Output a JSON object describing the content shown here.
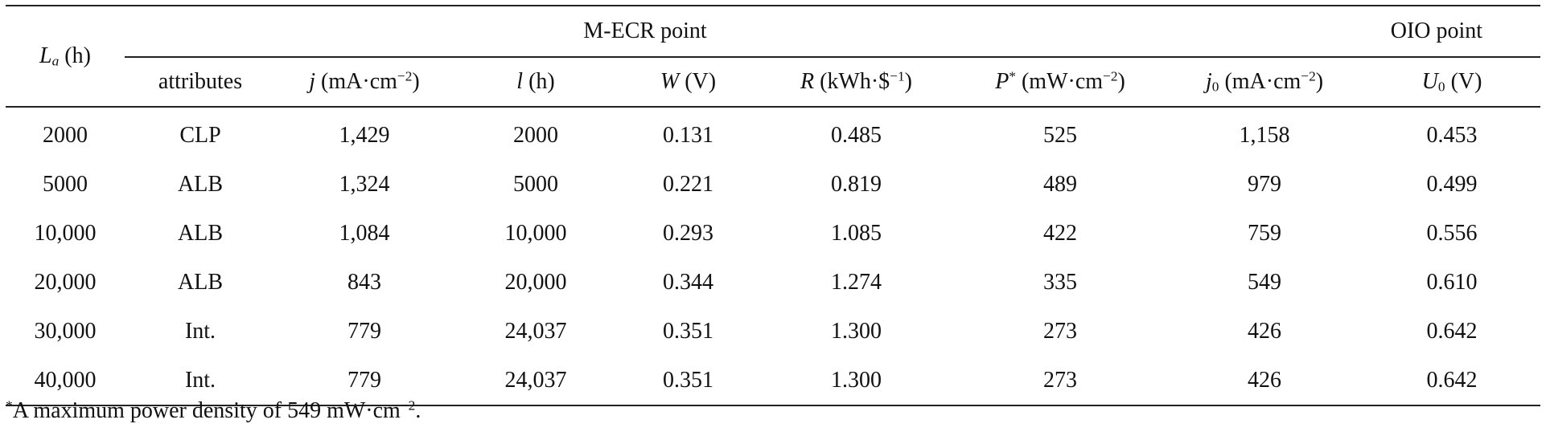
{
  "table": {
    "header_groups": {
      "la_label": "L",
      "la_sub": "a",
      "la_unit": " (h)",
      "mecr": "M-ECR point",
      "oio": "OIO point"
    },
    "columns": {
      "attributes": "attributes",
      "j_sym": "j",
      "j_unit": " (mA·cm",
      "j_exp": "−2",
      "j_close": ")",
      "l_sym": "l",
      "l_unit": " (h)",
      "w_sym": "W",
      "w_unit": " (V)",
      "r_sym": "R",
      "r_unit": " (kWh·$",
      "r_exp": "−1",
      "r_close": ")",
      "p_sym": "P",
      "p_star": "*",
      "p_unit": " (mW·cm",
      "p_exp": "−2",
      "p_close": ")",
      "j0_sym": "j",
      "j0_sub": "0",
      "j0_unit": " (mA·cm",
      "j0_exp": "−2",
      "j0_close": ")",
      "u0_sym": "U",
      "u0_sub": "0",
      "u0_unit": " (V)"
    },
    "rows": [
      [
        "2000",
        "CLP",
        "1,429",
        "2000",
        "0.131",
        "0.485",
        "525",
        "1,158",
        "0.453"
      ],
      [
        "5000",
        "ALB",
        "1,324",
        "5000",
        "0.221",
        "0.819",
        "489",
        "979",
        "0.499"
      ],
      [
        "10,000",
        "ALB",
        "1,084",
        "10,000",
        "0.293",
        "1.085",
        "422",
        "759",
        "0.556"
      ],
      [
        "20,000",
        "ALB",
        "843",
        "20,000",
        "0.344",
        "1.274",
        "335",
        "549",
        "0.610"
      ],
      [
        "30,000",
        "Int.",
        "779",
        "24,037",
        "0.351",
        "1.300",
        "273",
        "426",
        "0.642"
      ],
      [
        "40,000",
        "Int.",
        "779",
        "24,037",
        "0.351",
        "1.300",
        "273",
        "426",
        "0.642"
      ]
    ]
  },
  "footnote": {
    "star": "*",
    "text": "A maximum power density of 549 mW·cm",
    "exp": "−2",
    "end": "."
  }
}
